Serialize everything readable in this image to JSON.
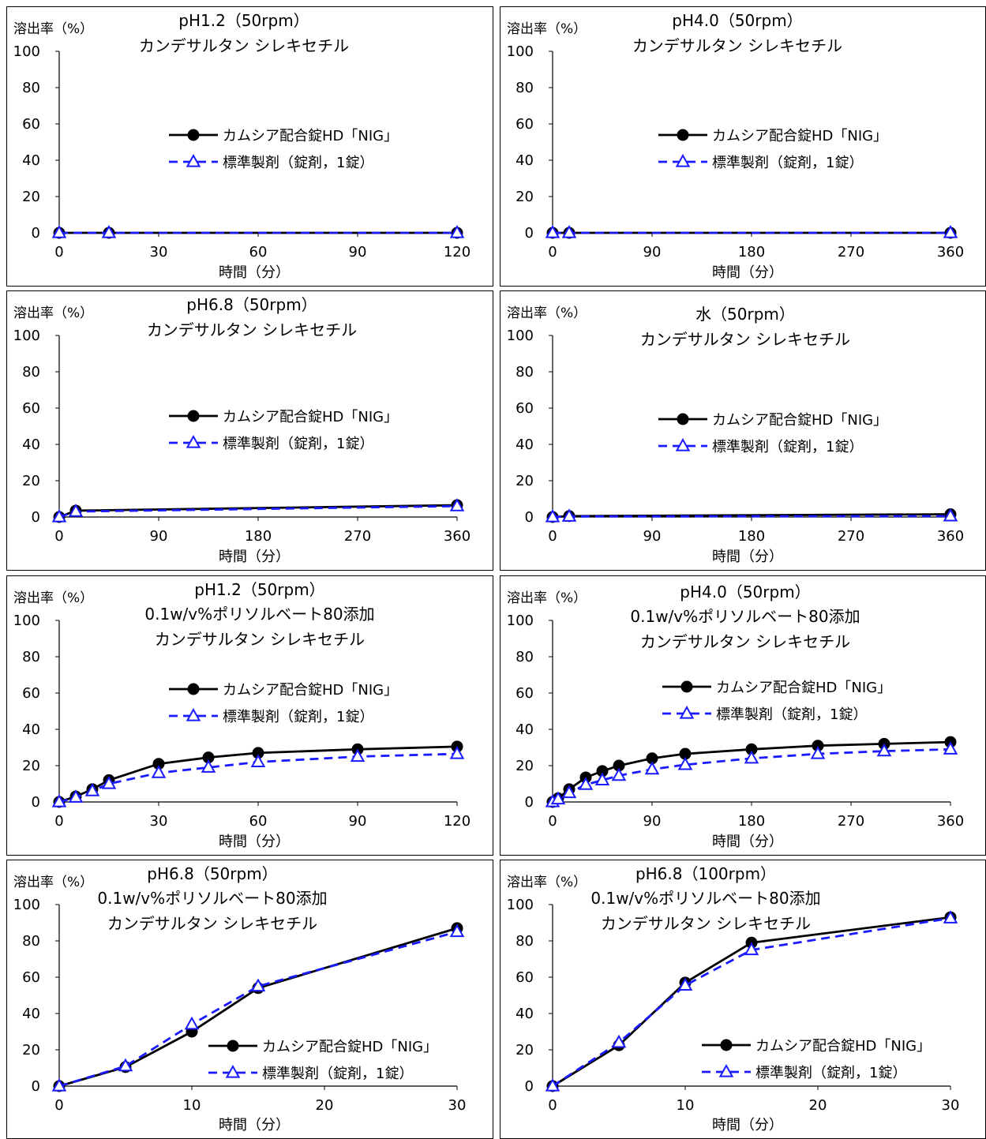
{
  "chart_data": [
    {
      "type": "line",
      "title": [
        "pH1.2（50rpm）",
        "カンデサルタン シレキセチル"
      ],
      "ylabel": "溶出率（%）",
      "xlabel": "時間（分）",
      "xlim": [
        0,
        120
      ],
      "ylim": [
        0,
        100
      ],
      "xticks": [
        0,
        30,
        60,
        90,
        120
      ],
      "yticks": [
        0,
        20,
        40,
        60,
        80,
        100
      ],
      "legend_position": "center-right",
      "series": [
        {
          "name": "カムシア配合錠HD「NIG」",
          "color": "#000000",
          "marker": "filled-circle",
          "x": [
            0,
            15,
            120
          ],
          "y": [
            0,
            0,
            0
          ]
        },
        {
          "name": "標準製剤（錠剤，1錠）",
          "color": "#1a1aff",
          "marker": "open-triangle",
          "x": [
            0,
            15,
            120
          ],
          "y": [
            0,
            0,
            0
          ]
        }
      ]
    },
    {
      "type": "line",
      "title": [
        "pH4.0（50rpm）",
        "カンデサルタン シレキセチル"
      ],
      "ylabel": "溶出率（%）",
      "xlabel": "時間（分）",
      "xlim": [
        0,
        360
      ],
      "ylim": [
        0,
        100
      ],
      "xticks": [
        0,
        90,
        180,
        270,
        360
      ],
      "yticks": [
        0,
        20,
        40,
        60,
        80,
        100
      ],
      "legend_position": "center-right",
      "series": [
        {
          "name": "カムシア配合錠HD「NIG」",
          "color": "#000000",
          "marker": "filled-circle",
          "x": [
            0,
            15,
            360
          ],
          "y": [
            0,
            0,
            0
          ]
        },
        {
          "name": "標準製剤（錠剤，1錠）",
          "color": "#1a1aff",
          "marker": "open-triangle",
          "x": [
            0,
            15,
            360
          ],
          "y": [
            0,
            0,
            0
          ]
        }
      ]
    },
    {
      "type": "line",
      "title": [
        "pH6.8（50rpm）",
        "カンデサルタン シレキセチル"
      ],
      "ylabel": "溶出率（%）",
      "xlabel": "時間（分）",
      "xlim": [
        0,
        360
      ],
      "ylim": [
        0,
        100
      ],
      "xticks": [
        0,
        90,
        180,
        270,
        360
      ],
      "yticks": [
        0,
        20,
        40,
        60,
        80,
        100
      ],
      "legend_position": "center-right",
      "series": [
        {
          "name": "カムシア配合錠HD「NIG」",
          "color": "#000000",
          "marker": "filled-circle",
          "x": [
            0,
            15,
            360
          ],
          "y": [
            0,
            3.5,
            6.5
          ]
        },
        {
          "name": "標準製剤（錠剤，1錠）",
          "color": "#1a1aff",
          "marker": "open-triangle",
          "x": [
            0,
            15,
            360
          ],
          "y": [
            0,
            3,
            6
          ]
        }
      ]
    },
    {
      "type": "line",
      "title": [
        "水（50rpm）",
        "カンデサルタン シレキセチル"
      ],
      "ylabel": "溶出率（%）",
      "xlabel": "時間（分）",
      "xlim": [
        0,
        360
      ],
      "ylim": [
        0,
        100
      ],
      "xticks": [
        0,
        90,
        180,
        270,
        360
      ],
      "yticks": [
        0,
        20,
        40,
        60,
        80,
        100
      ],
      "legend_position": "center-right",
      "series": [
        {
          "name": "カムシア配合錠HD「NIG」",
          "color": "#000000",
          "marker": "filled-circle",
          "x": [
            0,
            15,
            360
          ],
          "y": [
            0,
            0.5,
            1.5
          ]
        },
        {
          "name": "標準製剤（錠剤，1錠）",
          "color": "#1a1aff",
          "marker": "open-triangle",
          "x": [
            0,
            15,
            360
          ],
          "y": [
            0,
            0.3,
            0.5
          ]
        }
      ]
    },
    {
      "type": "line",
      "title": [
        "pH1.2（50rpm）",
        "0.1w/v%ポリソルベート80添加",
        "カンデサルタン シレキセチル"
      ],
      "ylabel": "溶出率（%）",
      "xlabel": "時間（分）",
      "xlim": [
        0,
        120
      ],
      "ylim": [
        0,
        100
      ],
      "xticks": [
        0,
        30,
        60,
        90,
        120
      ],
      "yticks": [
        0,
        20,
        40,
        60,
        80,
        100
      ],
      "legend_position": "center-right",
      "series": [
        {
          "name": "カムシア配合錠HD「NIG」",
          "color": "#000000",
          "marker": "filled-circle",
          "x": [
            0,
            5,
            10,
            15,
            30,
            45,
            60,
            90,
            120
          ],
          "y": [
            0,
            3,
            7,
            12,
            21,
            24.5,
            27,
            29,
            30.5
          ]
        },
        {
          "name": "標準製剤（錠剤，1錠）",
          "color": "#1a1aff",
          "marker": "open-triangle",
          "x": [
            0,
            5,
            10,
            15,
            30,
            45,
            60,
            90,
            120
          ],
          "y": [
            0,
            2.5,
            6,
            10,
            16,
            19,
            22,
            25,
            26.5
          ]
        }
      ]
    },
    {
      "type": "line",
      "title": [
        "pH4.0（50rpm）",
        "0.1w/v%ポリソルベート80添加",
        "カンデサルタン シレキセチル"
      ],
      "ylabel": "溶出率（%）",
      "xlabel": "時間（分）",
      "xlim": [
        0,
        360
      ],
      "ylim": [
        0,
        100
      ],
      "xticks": [
        0,
        90,
        180,
        270,
        360
      ],
      "yticks": [
        0,
        20,
        40,
        60,
        80,
        100
      ],
      "legend_position": "center-right",
      "series": [
        {
          "name": "カムシア配合錠HD「NIG」",
          "color": "#000000",
          "marker": "filled-circle",
          "x": [
            0,
            5,
            15,
            30,
            45,
            60,
            90,
            120,
            180,
            240,
            300,
            360
          ],
          "y": [
            0,
            2,
            7,
            13.5,
            17,
            20,
            24,
            26.5,
            29,
            31,
            32,
            33
          ]
        },
        {
          "name": "標準製剤（錠剤，1錠）",
          "color": "#1a1aff",
          "marker": "open-triangle",
          "x": [
            0,
            5,
            15,
            30,
            45,
            60,
            90,
            120,
            180,
            240,
            300,
            360
          ],
          "y": [
            0,
            1.5,
            5,
            9.5,
            12,
            14.5,
            18,
            20.5,
            24,
            26.5,
            28,
            29
          ]
        }
      ]
    },
    {
      "type": "line",
      "title": [
        "pH6.8（50rpm）",
        "0.1w/v%ポリソルベート80添加",
        "カンデサルタン シレキセチル"
      ],
      "ylabel": "溶出率（%）",
      "xlabel": "時間（分）",
      "xlim": [
        0,
        30
      ],
      "ylim": [
        0,
        100
      ],
      "xticks": [
        0,
        10,
        20,
        30
      ],
      "yticks": [
        0,
        20,
        40,
        60,
        80,
        100
      ],
      "legend_position": "bottom-right",
      "series": [
        {
          "name": "カムシア配合錠HD「NIG」",
          "color": "#000000",
          "marker": "filled-circle",
          "x": [
            0,
            5,
            10,
            15,
            30
          ],
          "y": [
            0,
            10.5,
            30,
            54,
            87
          ]
        },
        {
          "name": "標準製剤（錠剤，1錠）",
          "color": "#1a1aff",
          "marker": "open-triangle",
          "x": [
            0,
            5,
            10,
            15,
            30
          ],
          "y": [
            0,
            11,
            34,
            55,
            85
          ]
        }
      ]
    },
    {
      "type": "line",
      "title": [
        "pH6.8（100rpm）",
        "0.1w/v%ポリソルベート80添加",
        "カンデサルタン シレキセチル"
      ],
      "ylabel": "溶出率（%）",
      "xlabel": "時間（分）",
      "xlim": [
        0,
        30
      ],
      "ylim": [
        0,
        100
      ],
      "xticks": [
        0,
        10,
        20,
        30
      ],
      "yticks": [
        0,
        20,
        40,
        60,
        80,
        100
      ],
      "legend_position": "bottom-right",
      "series": [
        {
          "name": "カムシア配合錠HD「NIG」",
          "color": "#000000",
          "marker": "filled-circle",
          "x": [
            0,
            5,
            10,
            15,
            30
          ],
          "y": [
            0,
            22.5,
            57,
            79,
            93
          ]
        },
        {
          "name": "標準製剤（錠剤，1錠）",
          "color": "#1a1aff",
          "marker": "open-triangle",
          "x": [
            0,
            5,
            10,
            15,
            30
          ],
          "y": [
            0,
            24,
            55.5,
            75,
            92.5
          ]
        }
      ]
    }
  ]
}
